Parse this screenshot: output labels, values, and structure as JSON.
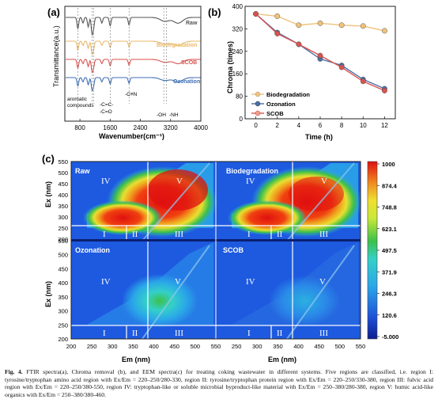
{
  "panels": {
    "a": {
      "label": "(a)",
      "chart_data": {
        "type": "line",
        "xlabel": "Wavenumber(cm⁻¹)",
        "ylabel": "Transmittance(a.u.)",
        "xticks": [
          "800",
          "1600",
          "2400",
          "3200",
          "4000"
        ],
        "xlim": [
          400,
          4000
        ],
        "series": [
          {
            "name": "Raw",
            "color": "#555555"
          },
          {
            "name": "Biodegradation",
            "color": "#e8b96a"
          },
          {
            "name": "SCOB",
            "color": "#d9534f"
          },
          {
            "name": "Ozonation",
            "color": "#3f6fb4"
          }
        ],
        "annotations": [
          "aromatic compounds",
          "-C=C-",
          "-C=O",
          "-C≡N",
          "-OH",
          "-NH"
        ]
      }
    },
    "b": {
      "label": "(b)",
      "chart_data": {
        "type": "line",
        "xlabel": "Time (h)",
        "ylabel": "Chroma (times)",
        "ylim": [
          0,
          400
        ],
        "yticks": [
          "0",
          "80",
          "160",
          "240",
          "320",
          "400"
        ],
        "x": [
          0,
          2,
          4,
          6,
          8,
          10,
          12
        ],
        "legend": "bottom-left",
        "series": [
          {
            "name": "Biodegradation",
            "color": "#f0c27b",
            "values": [
              373,
              365,
              333,
              340,
              333,
              330,
              313
            ]
          },
          {
            "name": "Ozonation",
            "color": "#4a6fa5",
            "values": [
              373,
              307,
              265,
              213,
              190,
              140,
              107
            ]
          },
          {
            "name": "SCOB",
            "color": "#d9534f",
            "values": [
              373,
              303,
              265,
              225,
              183,
              133,
              100
            ]
          }
        ]
      }
    },
    "c": {
      "label": "(c)",
      "chart_data": {
        "type": "heatmap",
        "xlabel": "Em (nm)",
        "ylabel": "Ex (nm)",
        "xlim": [
          200,
          550
        ],
        "ylim": [
          200,
          550
        ],
        "xticks": [
          "200",
          "250",
          "300",
          "350",
          "400",
          "450",
          "500",
          "550"
        ],
        "xticks_right": [
          "250",
          "300",
          "350",
          "400",
          "450",
          "500",
          "550"
        ],
        "yticks": [
          "550",
          "500",
          "450",
          "400",
          "350",
          "300",
          "250",
          "200"
        ],
        "panels": [
          "Raw",
          "Biodegradation",
          "Ozonation",
          "SCOB"
        ],
        "regions": [
          "I",
          "II",
          "III",
          "IV",
          "V"
        ],
        "colorbar": [
          "1000",
          "874.4",
          "748.8",
          "623.1",
          "497.5",
          "371.9",
          "246.3",
          "120.6",
          "-5.000"
        ]
      }
    }
  },
  "caption": {
    "label": "Fig. 4.",
    "text": " FTIR spectra(a), Chroma removal (b), and EEM spectra(c) for treating coking wastewater in different systems. Five regions are classified, i.e. region I: tyrosine/tryptophan amino acid region with Ex/Em = 220–250/280-330, region II: tyrosine/tryptophan protein region with Ex/Em = 220–250/330-380, region III: fulvic acid region with Ex/Em = 220–250/380-550, region IV: tryptophan-like or soluble microbial byproduct-like material with Ex/Em = 250–380/280-380, region V: humic acid-like organics with Ex/Em = 250–380/380-460."
  }
}
